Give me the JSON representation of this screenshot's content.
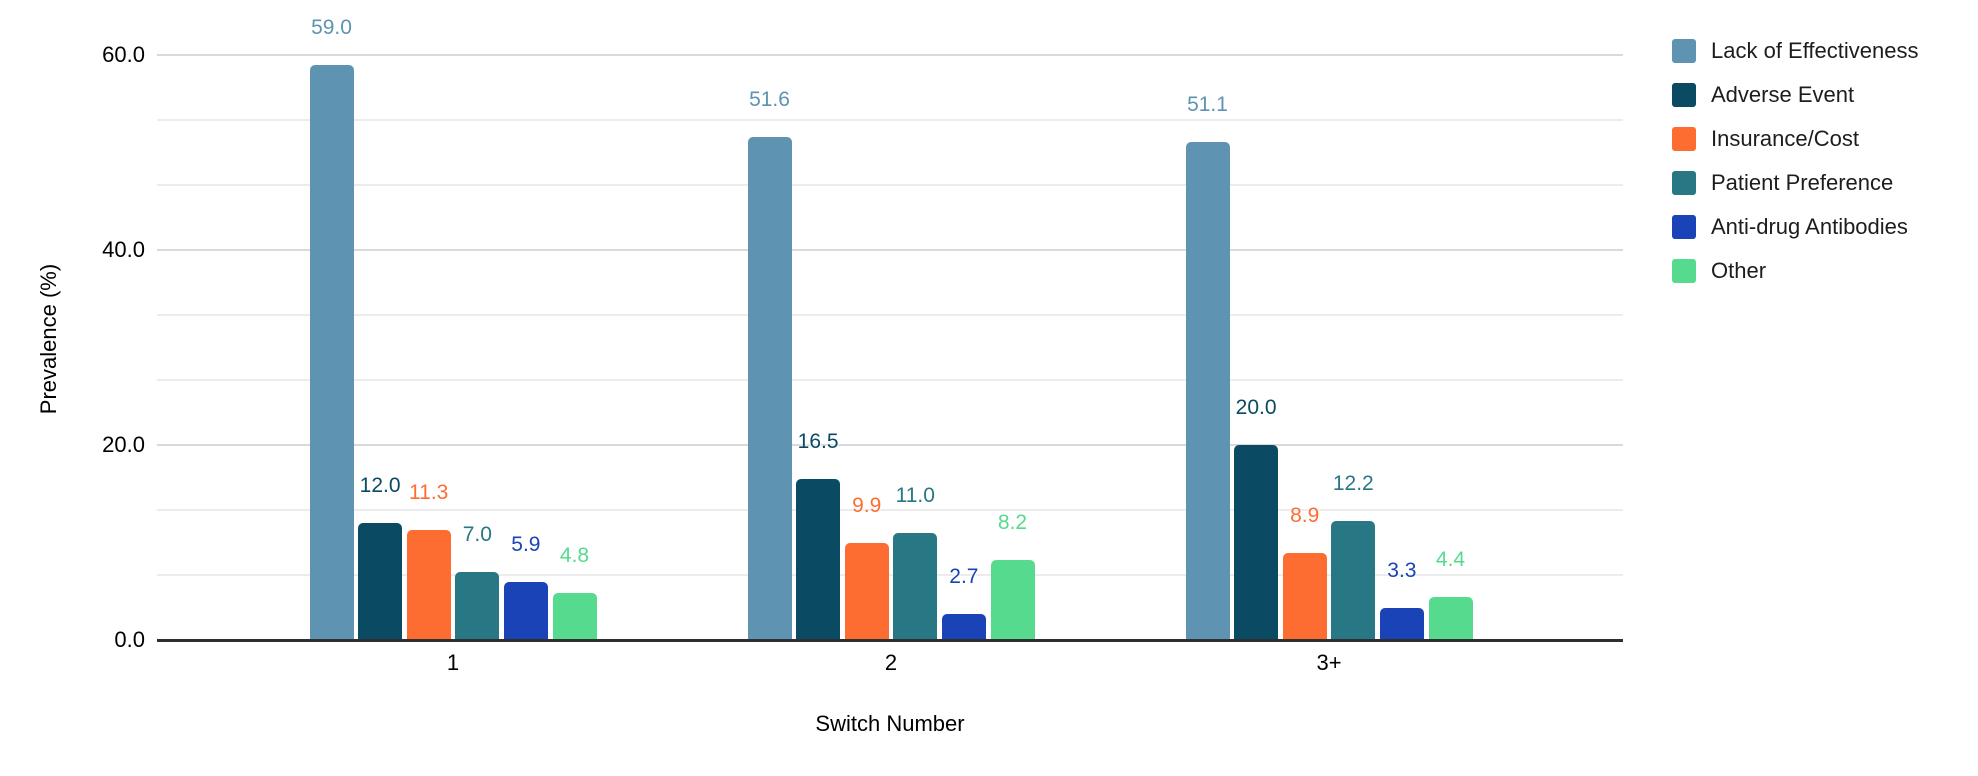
{
  "chart_data": {
    "type": "bar",
    "title": "",
    "xlabel": "Switch Number",
    "ylabel": "Prevalence (%)",
    "categories": [
      "1",
      "2",
      "3+"
    ],
    "series": [
      {
        "name": "Lack of Effectiveness",
        "color": "#5e93b1",
        "values": [
          59.0,
          51.6,
          51.1
        ]
      },
      {
        "name": "Adverse Event",
        "color": "#0a4a63",
        "values": [
          12.0,
          16.5,
          20.0
        ]
      },
      {
        "name": "Insurance/Cost",
        "color": "#fd6d31",
        "values": [
          11.3,
          9.9,
          8.9
        ]
      },
      {
        "name": "Patient Preference",
        "color": "#277884",
        "values": [
          7.0,
          11.0,
          12.2
        ]
      },
      {
        "name": "Anti-drug Antibodies",
        "color": "#1a43b8",
        "values": [
          5.9,
          2.7,
          3.3
        ]
      },
      {
        "name": "Other",
        "color": "#56db8e",
        "values": [
          4.8,
          8.2,
          4.4
        ]
      }
    ],
    "y_axis": {
      "min": 0,
      "max": 60,
      "major_step": 20,
      "minor_divisions_per_major": 3,
      "tick_labels": [
        "0.0",
        "20.0",
        "40.0",
        "60.0"
      ]
    },
    "value_labels_shown": true,
    "value_label_decimals": 1,
    "grid": true,
    "legend_position": "right"
  },
  "colors": {
    "background": "#ffffff",
    "grid_major": "#d9d9d9",
    "grid_minor": "#ececec",
    "axis_line": "#2f2f2f",
    "text": "#000000"
  }
}
